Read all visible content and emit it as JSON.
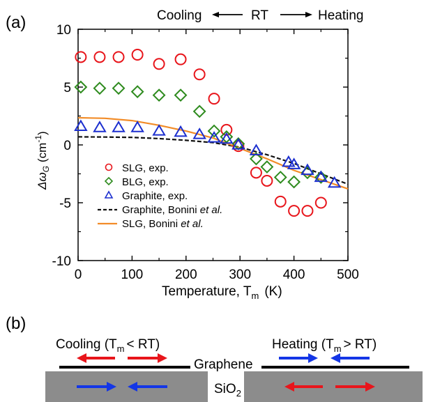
{
  "panel_a_label": "(a)",
  "panel_b_label": "(b)",
  "header": {
    "cooling": "Cooling",
    "rt": "RT",
    "heating": "Heating"
  },
  "chart_data": {
    "type": "scatter",
    "xlabel_main": "Temperature, T",
    "xlabel_sub": "m",
    "xlabel_unit": "(K)",
    "ylabel_symbol": "Δω",
    "ylabel_sub": "G",
    "ylabel_unit": "(cm",
    "ylabel_exp": "-1",
    "ylabel_close": ")",
    "xlim": [
      0,
      500
    ],
    "ylim": [
      -10,
      10
    ],
    "xticks": [
      0,
      100,
      200,
      300,
      400,
      500
    ],
    "yticks": [
      -10,
      -5,
      0,
      5,
      10
    ],
    "grid": false,
    "legend_position": "lower-left",
    "series": [
      {
        "label": "SLG, exp.",
        "marker": "circle",
        "color": "#e8151b",
        "points": [
          [
            5,
            7.6
          ],
          [
            40,
            7.6
          ],
          [
            75,
            7.6
          ],
          [
            110,
            7.8
          ],
          [
            150,
            7.0
          ],
          [
            190,
            7.4
          ],
          [
            225,
            6.1
          ],
          [
            252,
            4.0
          ],
          [
            275,
            1.3
          ],
          [
            297,
            -0.1
          ],
          [
            330,
            -2.4
          ],
          [
            350,
            -3.1
          ],
          [
            375,
            -4.9
          ],
          [
            400,
            -5.7
          ],
          [
            425,
            -5.7
          ],
          [
            450,
            -5.0
          ]
        ]
      },
      {
        "label": "BLG, exp.",
        "marker": "diamond",
        "color": "#2e8b1e",
        "points": [
          [
            5,
            5.0
          ],
          [
            40,
            4.9
          ],
          [
            75,
            4.9
          ],
          [
            110,
            4.6
          ],
          [
            150,
            4.3
          ],
          [
            190,
            4.3
          ],
          [
            225,
            2.9
          ],
          [
            252,
            1.2
          ],
          [
            275,
            0.7
          ],
          [
            297,
            0.1
          ],
          [
            330,
            -1.2
          ],
          [
            350,
            -1.9
          ],
          [
            375,
            -2.8
          ],
          [
            400,
            -3.2
          ],
          [
            425,
            -2.4
          ],
          [
            450,
            -2.8
          ]
        ]
      },
      {
        "label": "Graphite, exp.",
        "marker": "triangle",
        "color": "#1c2fcf",
        "points": [
          [
            5,
            1.6
          ],
          [
            40,
            1.5
          ],
          [
            75,
            1.5
          ],
          [
            110,
            1.5
          ],
          [
            150,
            1.2
          ],
          [
            190,
            1.1
          ],
          [
            225,
            0.9
          ],
          [
            252,
            0.6
          ],
          [
            275,
            0.5
          ],
          [
            297,
            0.0
          ],
          [
            330,
            -0.5
          ],
          [
            390,
            -1.5
          ],
          [
            400,
            -1.7
          ],
          [
            425,
            -2.2
          ],
          [
            450,
            -2.8
          ],
          [
            475,
            -3.3
          ]
        ]
      },
      {
        "label_main": "Graphite, Bonini ",
        "label_italic": "et al.",
        "line": "dashed",
        "color": "#111111",
        "points": [
          [
            0,
            0.7
          ],
          [
            50,
            0.68
          ],
          [
            100,
            0.65
          ],
          [
            150,
            0.55
          ],
          [
            200,
            0.4
          ],
          [
            250,
            0.2
          ],
          [
            300,
            -0.2
          ],
          [
            350,
            -0.85
          ],
          [
            400,
            -1.6
          ],
          [
            450,
            -2.5
          ],
          [
            500,
            -3.4
          ]
        ]
      },
      {
        "label_main": "SLG, Bonini ",
        "label_italic": "et al.",
        "line": "solid",
        "color": "#f28c28",
        "points": [
          [
            0,
            2.35
          ],
          [
            50,
            2.3
          ],
          [
            100,
            2.1
          ],
          [
            150,
            1.7
          ],
          [
            200,
            1.2
          ],
          [
            250,
            0.6
          ],
          [
            300,
            -0.3
          ],
          [
            350,
            -1.2
          ],
          [
            400,
            -2.2
          ],
          [
            450,
            -3.0
          ],
          [
            500,
            -3.8
          ]
        ]
      }
    ]
  },
  "panel_b": {
    "cooling_pre": "Cooling (T",
    "cooling_sub": "m",
    "cooling_post": "< RT)",
    "heating_pre": "Heating (T",
    "heating_sub": "m",
    "heating_post": "> RT)",
    "graphene_label": "Graphene",
    "substrate_label": "SiO",
    "substrate_sub": "2",
    "colors": {
      "red_arrow": "#e8151b",
      "blue_arrow": "#1436e6",
      "substrate": "#8c8c8c",
      "graphene": "#000000"
    }
  }
}
